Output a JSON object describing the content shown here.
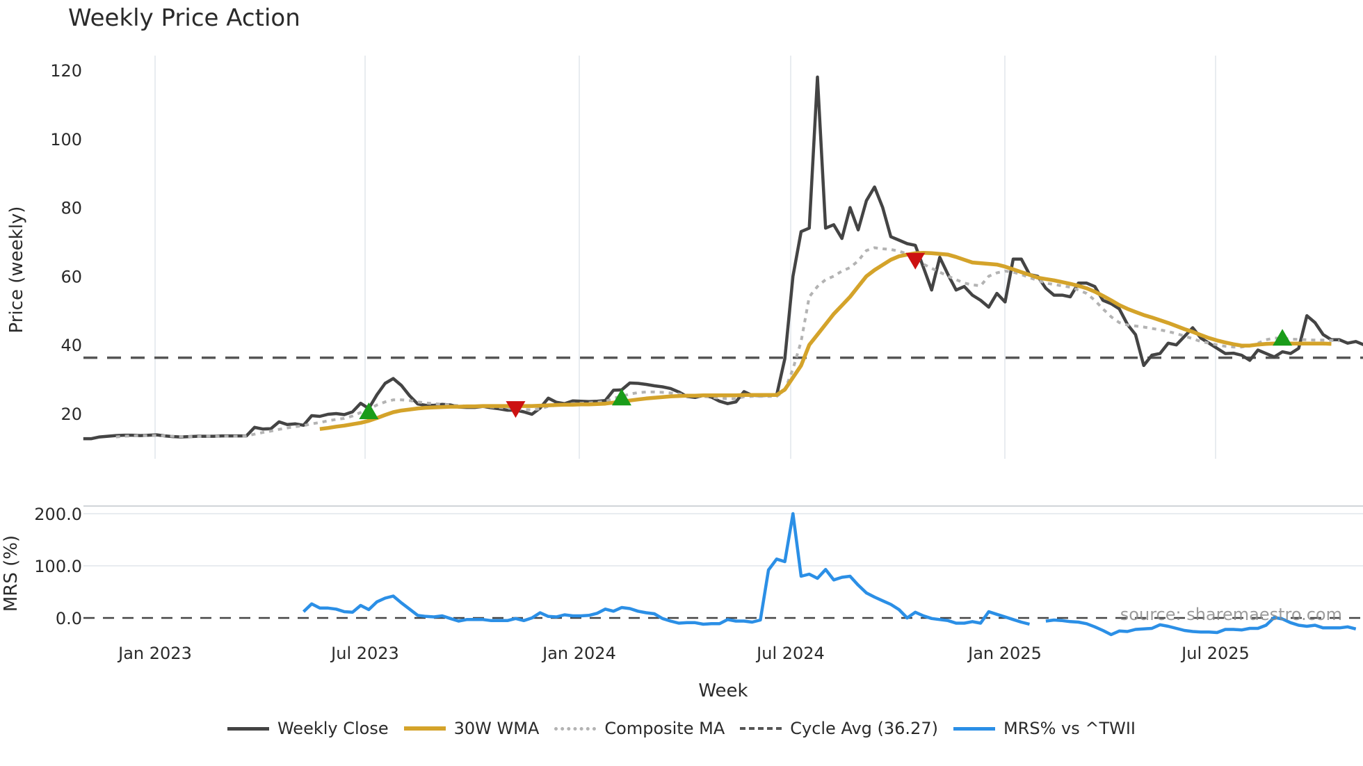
{
  "title": "Weekly Price Action",
  "source_note": "source: sharemaestro.com",
  "legend": [
    {
      "key": "close",
      "label": "Weekly Close"
    },
    {
      "key": "wma",
      "label": "30W WMA"
    },
    {
      "key": "comp",
      "label": "Composite MA"
    },
    {
      "key": "cycle",
      "label": "Cycle Avg (36.27)"
    },
    {
      "key": "mrs",
      "label": "MRS% vs ^TWII"
    }
  ],
  "colors": {
    "close": "#444444",
    "wma": "#d4a32a",
    "comp": "#b3b3b3",
    "cycle": "#555555",
    "mrs": "#2b8fe6",
    "buy": "#1a9c1a",
    "sell": "#cc1111",
    "grid": "#e8ecf0"
  },
  "chart_data": [
    {
      "type": "line",
      "title": "Weekly Price Action",
      "xlabel": "Week",
      "ylabel": "Price (weekly)",
      "ylim": [
        7,
        123
      ],
      "yticks": [
        20,
        40,
        60,
        80,
        100,
        120
      ],
      "xticks": [
        "Jan 2023",
        "Jul 2023",
        "Jan 2024",
        "Jul 2024",
        "Jan 2025",
        "Jul 2025"
      ],
      "grid": true,
      "legend_position": "bottom",
      "x_start": "2022-11-07",
      "x_step_weeks": 1,
      "series": [
        {
          "name": "Weekly Close",
          "values": [
            12.7,
            12.7,
            13.2,
            13.4,
            13.6,
            13.7,
            13.7,
            13.6,
            13.7,
            13.8,
            13.5,
            13.3,
            13.2,
            13.3,
            13.4,
            13.4,
            13.4,
            13.5,
            13.5,
            13.5,
            13.5,
            16.0,
            15.5,
            15.6,
            17.6,
            16.8,
            17.0,
            16.6,
            19.4,
            19.2,
            19.8,
            20.0,
            19.7,
            20.5,
            23.0,
            21.5,
            25.5,
            28.8,
            30.2,
            28.2,
            25.2,
            22.8,
            22.4,
            22.4,
            22.7,
            22.5,
            21.9,
            21.8,
            21.8,
            22.1,
            21.7,
            21.4,
            21.0,
            21.0,
            20.5,
            19.8,
            21.6,
            24.5,
            23.3,
            22.9,
            23.7,
            23.6,
            23.5,
            23.6,
            23.8,
            26.8,
            26.9,
            28.9,
            28.8,
            28.5,
            28.1,
            27.8,
            27.3,
            26.3,
            25.0,
            24.7,
            25.3,
            24.8,
            23.6,
            22.9,
            23.4,
            26.4,
            25.3,
            25.2,
            25.3,
            25.3,
            36.0,
            60.0,
            73.0,
            74.0,
            118.0,
            74.0,
            75.0,
            71.0,
            80.0,
            73.5,
            82.0,
            86.0,
            80.0,
            71.5,
            70.5,
            69.5,
            69.0,
            62.5,
            56.0,
            65.5,
            60.5,
            56.0,
            57.0,
            54.5,
            53.0,
            51.0,
            55.0,
            52.5,
            65.0,
            65.0,
            60.5,
            60.0,
            56.5,
            54.5,
            54.5,
            54.0,
            58.0,
            58.0,
            57.0,
            53.0,
            52.0,
            50.5,
            46.0,
            43.0,
            34.0,
            37.0,
            37.5,
            40.5,
            40.0,
            42.5,
            45.0,
            42.0,
            40.5,
            39.0,
            37.5,
            37.6,
            37.0,
            35.5,
            38.5,
            37.5,
            36.5,
            38.0,
            37.5,
            39.0,
            48.5,
            46.5,
            43.0,
            41.5,
            41.5,
            40.5,
            41.0,
            40.0,
            42.0,
            40.5
          ]
        },
        {
          "name": "30W WMA",
          "values": [
            null,
            null,
            null,
            null,
            null,
            null,
            null,
            null,
            null,
            null,
            null,
            null,
            null,
            null,
            null,
            null,
            null,
            null,
            null,
            null,
            null,
            null,
            null,
            null,
            null,
            null,
            null,
            null,
            null,
            15.5,
            15.8,
            16.2,
            16.5,
            16.9,
            17.3,
            17.9,
            18.7,
            19.6,
            20.4,
            20.9,
            21.2,
            21.5,
            21.7,
            21.8,
            21.9,
            22.0,
            22.0,
            22.1,
            22.1,
            22.2,
            22.2,
            22.2,
            22.2,
            22.2,
            22.2,
            22.2,
            22.3,
            22.4,
            22.5,
            22.6,
            22.6,
            22.7,
            22.7,
            22.8,
            22.9,
            23.2,
            23.5,
            23.8,
            24.1,
            24.4,
            24.6,
            24.8,
            25.0,
            25.1,
            25.2,
            25.2,
            25.3,
            25.3,
            25.3,
            25.3,
            25.3,
            25.4,
            25.4,
            25.4,
            25.4,
            25.4,
            27.0,
            30.5,
            34.0,
            40.0,
            43.0,
            46.0,
            49.0,
            51.5,
            54.0,
            57.0,
            60.0,
            61.8,
            63.3,
            64.8,
            65.8,
            66.3,
            66.7,
            66.8,
            66.7,
            66.5,
            66.3,
            65.6,
            64.8,
            64.0,
            63.8,
            63.6,
            63.4,
            62.8,
            62.0,
            61.2,
            60.4,
            59.6,
            59.2,
            58.8,
            58.3,
            57.8,
            57.2,
            56.5,
            55.5,
            54.3,
            53.0,
            51.6,
            50.5,
            49.6,
            48.7,
            48.0,
            47.2,
            46.4,
            45.5,
            44.6,
            43.8,
            42.9,
            42.0,
            41.3,
            40.7,
            40.2,
            39.8,
            39.8,
            40.1,
            40.3,
            40.4,
            40.4,
            40.4,
            40.4,
            40.4,
            40.4,
            40.4,
            40.3
          ]
        },
        {
          "name": "Composite MA",
          "values": [
            null,
            null,
            null,
            null,
            13.2,
            13.4,
            13.5,
            13.6,
            13.6,
            13.6,
            13.5,
            13.4,
            13.3,
            13.3,
            13.3,
            13.4,
            13.4,
            13.4,
            13.4,
            13.4,
            13.5,
            14.0,
            14.5,
            14.9,
            15.4,
            15.8,
            16.2,
            16.5,
            17.0,
            17.4,
            17.9,
            18.3,
            18.6,
            19.3,
            20.3,
            21.3,
            22.5,
            23.4,
            24.0,
            24.0,
            23.8,
            23.4,
            23.1,
            22.9,
            22.7,
            22.5,
            22.3,
            22.2,
            22.1,
            22.0,
            21.9,
            21.8,
            21.6,
            21.4,
            21.2,
            21.1,
            21.4,
            22.1,
            22.4,
            22.6,
            22.9,
            23.0,
            23.1,
            23.3,
            23.5,
            24.5,
            25.0,
            25.7,
            26.1,
            26.3,
            26.3,
            26.2,
            26.0,
            25.7,
            25.4,
            25.1,
            25.0,
            24.8,
            24.5,
            24.3,
            24.3,
            24.9,
            25.0,
            25.0,
            25.0,
            25.0,
            26.8,
            33.0,
            41.0,
            54.0,
            57.0,
            59.0,
            60.0,
            61.5,
            62.5,
            64.5,
            67.5,
            68.3,
            68.0,
            67.8,
            67.3,
            66.5,
            65.5,
            63.5,
            62.3,
            61.2,
            60.0,
            59.0,
            58.0,
            57.5,
            57.2,
            60.0,
            61.0,
            61.5,
            61.2,
            60.5,
            59.6,
            58.8,
            58.0,
            57.6,
            57.2,
            56.8,
            56.0,
            55.0,
            53.0,
            50.5,
            48.2,
            46.5,
            45.8,
            45.5,
            45.2,
            44.8,
            44.4,
            43.9,
            43.3,
            42.6,
            41.8,
            41.0,
            40.5,
            40.0,
            39.6,
            39.4,
            39.4,
            39.8,
            40.5,
            41.5,
            42.0,
            41.9,
            41.7,
            41.6,
            41.5,
            41.4,
            41.4,
            41.3,
            41.2
          ]
        },
        {
          "name": "Cycle Avg (36.27)",
          "values": [
            36.27
          ],
          "style": "dashed-horizontal"
        }
      ],
      "markers": [
        {
          "type": "buy",
          "index": 35,
          "value": 20.4
        },
        {
          "type": "sell",
          "index": 53,
          "value": 21.6
        },
        {
          "type": "buy",
          "index": 66,
          "value": 24.4
        },
        {
          "type": "sell",
          "index": 102,
          "value": 64.8
        },
        {
          "type": "buy",
          "index": 147,
          "value": 41.8
        }
      ]
    },
    {
      "type": "line",
      "title": "",
      "xlabel": "Week",
      "ylabel": "MRS (%)",
      "ylim": [
        -20,
        215
      ],
      "yticks": [
        "0.0",
        "100.0",
        "200.0"
      ],
      "zero_line": "dashed",
      "series": [
        {
          "name": "MRS% vs ^TWII",
          "start_index": 27,
          "gap_after_index": 117,
          "values": [
            12,
            27,
            19,
            19,
            17,
            12,
            11,
            24,
            16,
            31,
            38,
            42,
            29,
            17,
            5,
            3,
            2,
            4,
            -1,
            -6,
            -3,
            -3,
            -3,
            -5,
            -5,
            -5,
            -1,
            -5,
            0,
            10,
            3,
            2,
            6,
            4,
            4,
            5,
            9,
            17,
            13,
            20,
            18,
            13,
            10,
            8,
            -1,
            -6,
            -10,
            -9,
            -9,
            -12,
            -11,
            -11,
            -3,
            -6,
            -6,
            -8,
            -4,
            92,
            113,
            108,
            200,
            80,
            84,
            76,
            93,
            73,
            78,
            80,
            63,
            48,
            40,
            33,
            26,
            16,
            0,
            11,
            4,
            -1,
            -3,
            -5,
            -10,
            -10,
            -7,
            -10,
            12,
            7,
            2,
            -3,
            -8,
            -12,
            null,
            -6,
            -4,
            -5,
            -7,
            -8,
            -11,
            -17,
            -24,
            -32,
            -25,
            -26,
            -22,
            -21,
            -20,
            -13,
            -16,
            -20,
            -24,
            -26,
            -27,
            -27,
            -28,
            -22,
            -22,
            -23,
            -20,
            -20,
            -14,
            1,
            -2,
            -9,
            -14,
            -16,
            -14,
            -19,
            -19,
            -19,
            -17,
            -21
          ]
        }
      ]
    }
  ]
}
